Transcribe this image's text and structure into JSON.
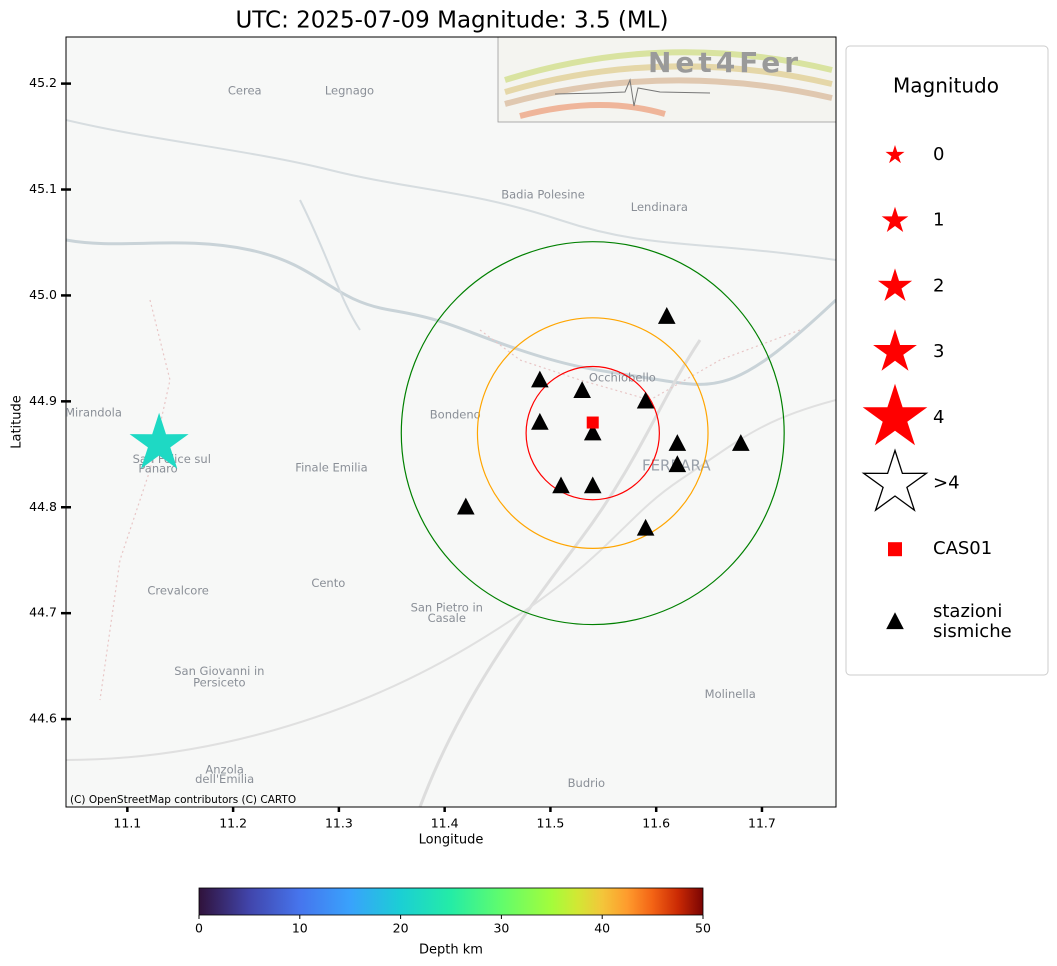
{
  "chart_data": {
    "type": "map",
    "title": "UTC: 2025-07-09 Magnitude: 3.5 (ML)",
    "x_label": "Longitude",
    "y_label": "Latitude",
    "xlim": [
      11.042,
      11.77
    ],
    "ylim": [
      44.517,
      45.244
    ],
    "xticks": [
      11.1,
      11.2,
      11.3,
      11.4,
      11.5,
      11.6,
      11.7
    ],
    "yticks": [
      44.6,
      44.7,
      44.8,
      44.9,
      {
        "value": 45,
        "label": "45.0"
      },
      45.1,
      45.2
    ],
    "attribution": "(C) OpenStreetMap contributors (C) CARTO",
    "logo": "Net4Fer",
    "event": {
      "x": 11.13,
      "y": 44.86,
      "color": "#1ed9c4"
    },
    "reference": {
      "name": "CAS01",
      "x": 11.54,
      "y": 44.88,
      "color": "#ff0000"
    },
    "stations": {
      "name": "stazioni sismiche",
      "color": "#000000",
      "x": [
        11.61,
        11.49,
        11.53,
        11.59,
        11.49,
        11.54,
        11.62,
        11.68,
        11.62,
        11.51,
        11.54,
        11.42,
        11.59
      ],
      "y": [
        44.98,
        44.92,
        44.91,
        44.9,
        44.88,
        44.87,
        44.86,
        44.86,
        44.84,
        44.82,
        44.82,
        44.8,
        44.78
      ]
    },
    "circles": {
      "center": [
        11.54,
        44.87
      ],
      "radii": [
        0.063,
        0.109,
        0.181
      ],
      "colors": [
        "#ff0000",
        "#ffa500",
        "#008000"
      ]
    },
    "map_labels": [
      {
        "text": "Cerea",
        "x": 11.211,
        "y": 45.193
      },
      {
        "text": "Legnago",
        "x": 11.31,
        "y": 45.193
      },
      {
        "text": "Badia Polesine",
        "x": 11.493,
        "y": 45.095
      },
      {
        "text": "Lendinara",
        "x": 11.603,
        "y": 45.083
      },
      {
        "text": "Occhiobello",
        "x": 11.568,
        "y": 44.922
      },
      {
        "text": "Bondeno",
        "x": 11.41,
        "y": 44.887
      },
      {
        "text": "Mirandola",
        "x": 11.068,
        "y": 44.889
      },
      {
        "text": "San Felice sul",
        "x": 11.142,
        "y": 44.845
      },
      {
        "text": "Panaro",
        "x": 11.129,
        "y": 44.836
      },
      {
        "text": "Finale Emilia",
        "x": 11.293,
        "y": 44.837
      },
      {
        "text": "FERRARA",
        "x": 11.619,
        "y": 44.839
      },
      {
        "text": "Cento",
        "x": 11.29,
        "y": 44.728
      },
      {
        "text": "Crevalcore",
        "x": 11.148,
        "y": 44.721
      },
      {
        "text": "San Pietro in",
        "x": 11.402,
        "y": 44.705
      },
      {
        "text": "Casale",
        "x": 11.402,
        "y": 44.695
      },
      {
        "text": "San Giovanni in",
        "x": 11.187,
        "y": 44.645
      },
      {
        "text": "Persiceto",
        "x": 11.187,
        "y": 44.634
      },
      {
        "text": "Molinella",
        "x": 11.67,
        "y": 44.623
      },
      {
        "text": "Anzola",
        "x": 11.192,
        "y": 44.552
      },
      {
        "text": "dell'Emilia",
        "x": 11.192,
        "y": 44.543
      },
      {
        "text": "Budrio",
        "x": 11.534,
        "y": 44.539
      }
    ],
    "legend": {
      "title": "Magnitudo",
      "position": "right",
      "entries": [
        {
          "label": [
            "0"
          ],
          "marker": "star"
        },
        {
          "label": [
            "1"
          ],
          "marker": "star"
        },
        {
          "label": [
            "2"
          ],
          "marker": "star"
        },
        {
          "label": [
            "3"
          ],
          "marker": "star"
        },
        {
          "label": [
            "4"
          ],
          "marker": "star"
        },
        {
          "label": [
            ">4"
          ],
          "marker": "star-open"
        },
        {
          "label": [
            "CAS01"
          ],
          "marker": "square"
        },
        {
          "label": [
            "stazioni",
            "sismiche"
          ],
          "marker": "triangle"
        }
      ]
    },
    "colorbar": {
      "label": "Depth km",
      "lim": [
        0,
        50
      ],
      "ticks": [
        0,
        10,
        20,
        30,
        40,
        50
      ]
    }
  }
}
